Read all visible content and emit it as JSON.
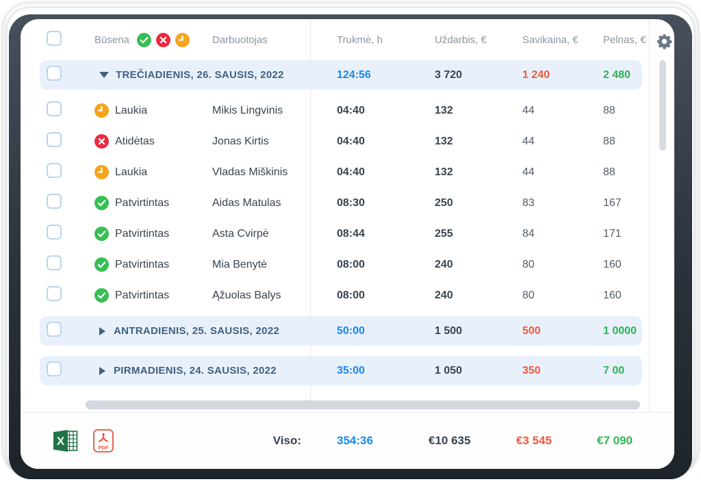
{
  "table": {
    "header": {
      "status_label": "Būsena",
      "employee_label": "Darbuotojas",
      "duration_label": "Trukmė, h",
      "earnings_label": "Uždarbis, €",
      "cost_label": "Savikaina, €",
      "profit_label": "Pelnas, €",
      "status_legend": [
        "approved",
        "rejected",
        "waiting"
      ]
    },
    "groups": [
      {
        "title": "TREČIADIENIS, 26. SAUSIS, 2022",
        "expanded": true,
        "duration": "124:56",
        "earnings": "3 720",
        "cost": "1 240",
        "profit": "2 480",
        "rows": [
          {
            "status": "waiting",
            "status_label": "Laukia",
            "employee": "Mikis Lingvinis",
            "duration": "04:40",
            "earnings": "132",
            "cost": "44",
            "profit": "88"
          },
          {
            "status": "rejected",
            "status_label": "Atidėtas",
            "employee": "Jonas Kirtis",
            "duration": "04:40",
            "earnings": "132",
            "cost": "44",
            "profit": "88"
          },
          {
            "status": "waiting",
            "status_label": "Laukia",
            "employee": "Vladas Miškinis",
            "duration": "04:40",
            "earnings": "132",
            "cost": "44",
            "profit": "88"
          },
          {
            "status": "approved",
            "status_label": "Patvirtintas",
            "employee": "Aidas Matulas",
            "duration": "08:30",
            "earnings": "250",
            "cost": "83",
            "profit": "167"
          },
          {
            "status": "approved",
            "status_label": "Patvirtintas",
            "employee": "Asta Cvirpė",
            "duration": "08:44",
            "earnings": "255",
            "cost": "84",
            "profit": "171"
          },
          {
            "status": "approved",
            "status_label": "Patvirtintas",
            "employee": "Mia Benytė",
            "duration": "08:00",
            "earnings": "240",
            "cost": "80",
            "profit": "160"
          },
          {
            "status": "approved",
            "status_label": "Patvirtintas",
            "employee": "Ąžuolas Balys",
            "duration": "08:00",
            "earnings": "240",
            "cost": "80",
            "profit": "160"
          }
        ]
      },
      {
        "title": "ANTRADIENIS, 25. SAUSIS, 2022",
        "expanded": false,
        "duration": "50:00",
        "earnings": "1 500",
        "cost": "500",
        "profit": "1 0000",
        "rows": []
      },
      {
        "title": "PIRMADIENIS, 24. SAUSIS, 2022",
        "expanded": false,
        "duration": "35:00",
        "earnings": "1 050",
        "cost": "350",
        "profit": "7 00",
        "rows": []
      }
    ]
  },
  "footer": {
    "total_label": "Viso:",
    "duration": "354:36",
    "earnings": "€10 635",
    "cost": "€3 545",
    "profit": "€7 090",
    "pdf_badge_text": "PDF",
    "excel_badge_text": "X"
  },
  "icons": {
    "settings": "gear-icon",
    "status_approved": "check-circle-icon",
    "status_rejected": "x-circle-icon",
    "status_waiting": "clock-circle-icon",
    "group_expanded": "triangle-down-icon",
    "group_collapsed": "triangle-right-icon",
    "export_excel": "excel-file-icon",
    "export_pdf": "pdf-file-icon"
  },
  "colors": {
    "accent_blue": "#1887f0",
    "negative_red": "#f4573a",
    "positive_green": "#2eb451",
    "status_green": "#36bf54",
    "status_red": "#ed2b3f",
    "status_amber": "#f6a41c",
    "group_row_bg": "#e8f1fb",
    "excel_green": "#217346",
    "pdf_red": "#e5533d",
    "gear_gray": "#6b7885"
  }
}
